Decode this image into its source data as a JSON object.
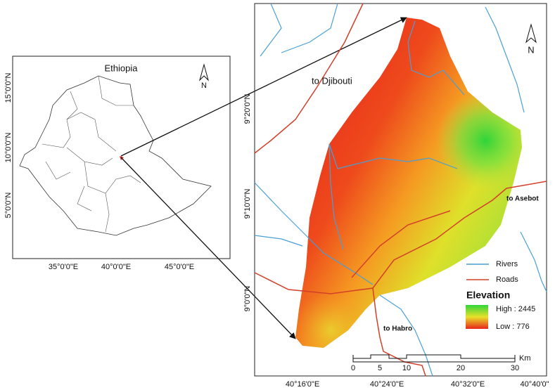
{
  "inset": {
    "title": "Ethiopia",
    "north": "N",
    "lat_labels": [
      "15°0'0\"N",
      "10°0'0\"N",
      "5°0'0\"N"
    ],
    "lon_labels": [
      "35°0'0\"E",
      "40°0'0\"E",
      "45°0'0\"E"
    ]
  },
  "main": {
    "north": "N",
    "annotations": [
      "to Djibouti",
      "to Asebot",
      "to Habro"
    ],
    "lat_labels": [
      "9°20'0\"N",
      "9°10'0\"N",
      "9°0'0\"N"
    ],
    "lon_labels": [
      "40°16'0\"E",
      "40°24'0\"E",
      "40°32'0\"E",
      "40°40'0\""
    ]
  },
  "legend": {
    "rivers": "Rivers",
    "roads": "Roads",
    "elevation_title": "Elevation",
    "high": "High : 2445",
    "low": "Low : 776"
  },
  "scale_bar": {
    "labels": [
      "0",
      "5",
      "10",
      "20",
      "30"
    ],
    "unit": "Km"
  }
}
